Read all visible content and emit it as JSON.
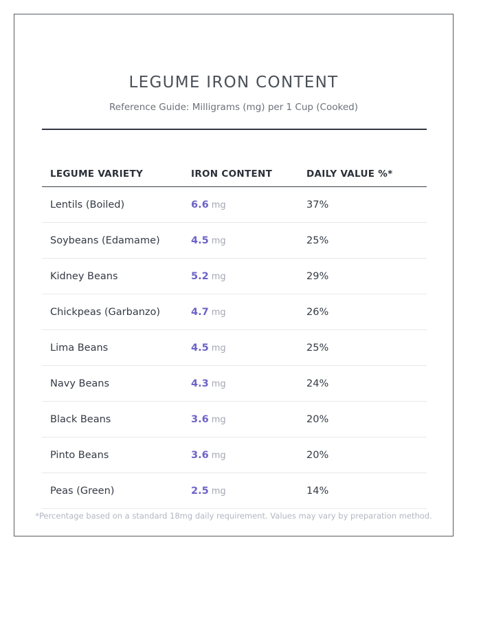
{
  "header": {
    "title": "LEGUME IRON CONTENT",
    "subtitle": "Reference Guide: Milligrams (mg) per 1 Cup (Cooked)"
  },
  "table": {
    "columns": [
      "LEGUME VARIETY",
      "IRON CONTENT",
      "DAILY VALUE %*"
    ],
    "rows": [
      {
        "variety": "Lentils (Boiled)",
        "iron": "6.6",
        "unit": "mg",
        "dv": "37%"
      },
      {
        "variety": "Soybeans (Edamame)",
        "iron": "4.5",
        "unit": "mg",
        "dv": "25%"
      },
      {
        "variety": "Kidney Beans",
        "iron": "5.2",
        "unit": "mg",
        "dv": "29%"
      },
      {
        "variety": "Chickpeas (Garbanzo)",
        "iron": "4.7",
        "unit": "mg",
        "dv": "26%"
      },
      {
        "variety": "Lima Beans",
        "iron": "4.5",
        "unit": "mg",
        "dv": "25%"
      },
      {
        "variety": "Navy Beans",
        "iron": "4.3",
        "unit": "mg",
        "dv": "24%"
      },
      {
        "variety": "Black Beans",
        "iron": "3.6",
        "unit": "mg",
        "dv": "20%"
      },
      {
        "variety": "Pinto Beans",
        "iron": "3.6",
        "unit": "mg",
        "dv": "20%"
      },
      {
        "variety": "Peas (Green)",
        "iron": "2.5",
        "unit": "mg",
        "dv": "14%"
      }
    ]
  },
  "footnote": "*Percentage based on a standard 18mg daily requirement. Values may vary by preparation method.",
  "colors": {
    "accent": "#6c63c6",
    "unit": "#a3a7b3",
    "rule": "#2f3640"
  }
}
